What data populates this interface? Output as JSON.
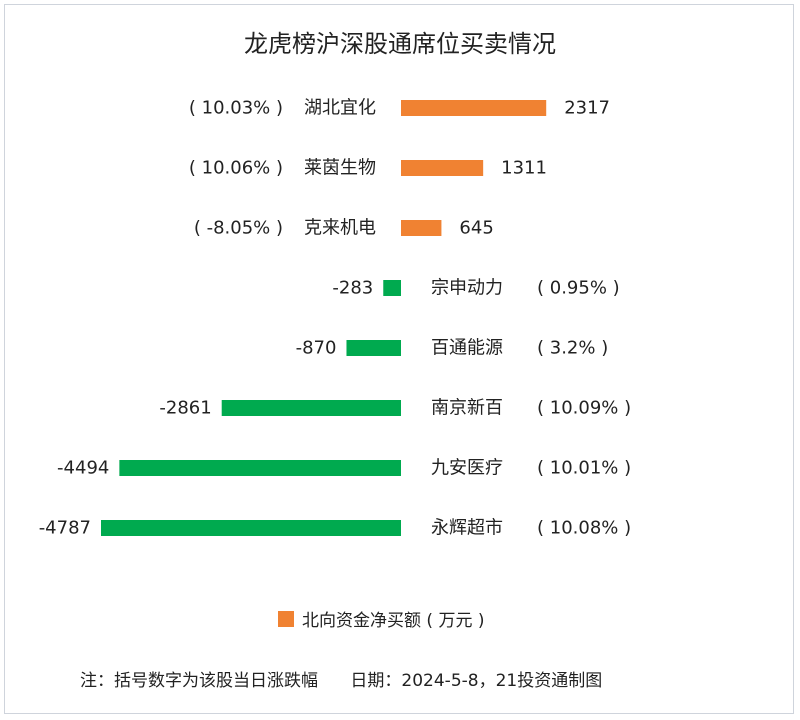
{
  "colors": {
    "positive": "#F08232",
    "negative": "#00AA4F",
    "text": "#222222",
    "border": "#cfd4dc"
  },
  "chart_data": {
    "type": "bar",
    "orientation": "horizontal",
    "title": "龙虎榜沪深股通席位买卖情况",
    "categories": [
      "湖北宜化",
      "莱茵生物",
      "克来机电",
      "宗申动力",
      "百通能源",
      "南京新百",
      "九安医疗",
      "永辉超市"
    ],
    "values": [
      2317,
      1311,
      645,
      -283,
      -870,
      -2861,
      -4494,
      -4787
    ],
    "value_labels": [
      "2317",
      "1311",
      "645",
      "-283",
      "-870",
      "-2861",
      "-4494",
      "-4787"
    ],
    "pct_labels": [
      "( 10.03% )",
      "( 10.06% )",
      "( -8.05% )",
      "( 0.95% )",
      "( 3.2% )",
      "( 10.09% )",
      "( 10.01% )",
      "( 10.08% )"
    ],
    "series": [
      {
        "name": "北向资金净买额 ( 万元 )",
        "values": [
          2317,
          1311,
          645,
          -283,
          -870,
          -2861,
          -4494,
          -4787
        ]
      }
    ],
    "legend_position": "bottom",
    "grid": false
  },
  "legend": {
    "label": "北向资金净买额 ( 万元 )"
  },
  "footnote": "注：括号数字为该股当日涨跌幅      日期：2024-5-8，21投资通制图"
}
